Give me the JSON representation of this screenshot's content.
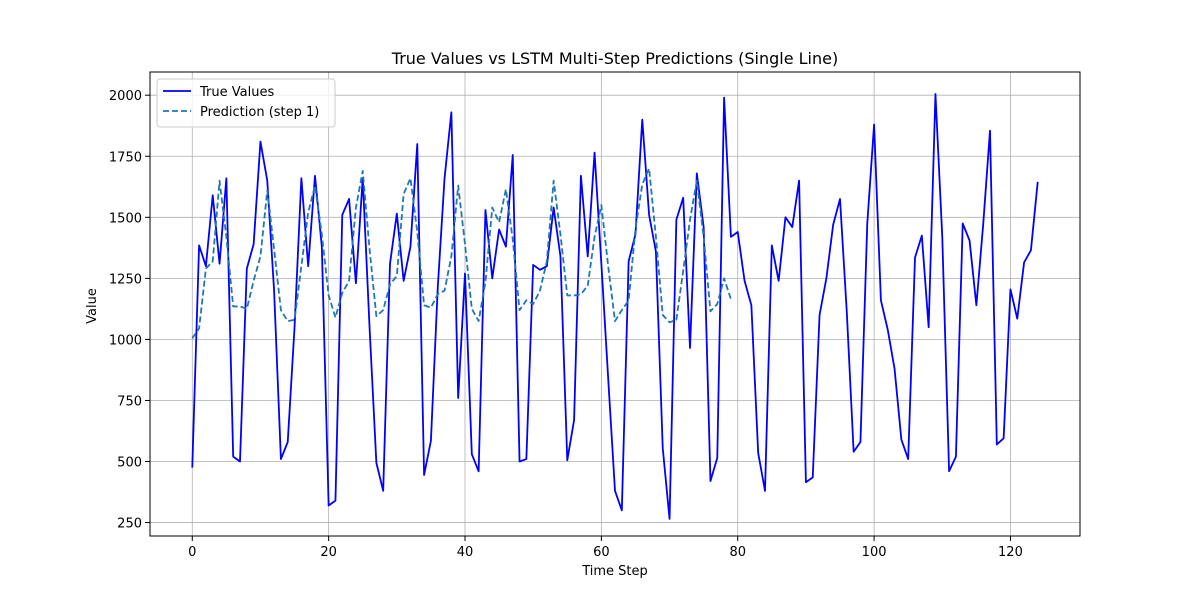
{
  "chart_data": {
    "type": "line",
    "title": "True Values vs LSTM Multi-Step Predictions (Single Line)",
    "xlabel": "Time Step",
    "ylabel": "Value",
    "xlim": [
      -6.2,
      130.2
    ],
    "ylim": [
      195,
      2095
    ],
    "xticks": [
      0,
      20,
      40,
      60,
      80,
      100,
      120
    ],
    "yticks": [
      250,
      500,
      750,
      1000,
      1250,
      1500,
      1750,
      2000
    ],
    "grid": true,
    "legend_position": "top-left",
    "series": [
      {
        "name": "True Values",
        "color": "#0000ff",
        "style": "solid",
        "values": [
          475,
          1385,
          1300,
          1590,
          1310,
          1660,
          520,
          500,
          1290,
          1390,
          1810,
          1650,
          1200,
          510,
          580,
          1050,
          1660,
          1300,
          1670,
          1380,
          320,
          340,
          1510,
          1575,
          1230,
          1660,
          1050,
          495,
          380,
          1310,
          1515,
          1240,
          1380,
          1800,
          445,
          585,
          1210,
          1660,
          1930,
          760,
          1270,
          530,
          460,
          1530,
          1250,
          1450,
          1380,
          1755,
          500,
          510,
          1305,
          1285,
          1300,
          1540,
          1340,
          505,
          670,
          1670,
          1340,
          1765,
          1310,
          840,
          380,
          300,
          1320,
          1430,
          1900,
          1510,
          1360,
          555,
          265,
          1490,
          1580,
          965,
          1680,
          1460,
          420,
          515,
          1990,
          1420,
          1440,
          1240,
          1140,
          535,
          380,
          1385,
          1240,
          1500,
          1460,
          1650,
          415,
          435,
          1100,
          1250,
          1470,
          1575,
          1110,
          540,
          580,
          1475,
          1880,
          1160,
          1040,
          880,
          590,
          510,
          1335,
          1425,
          1050,
          2005,
          1420,
          460,
          520,
          1475,
          1405,
          1140,
          1470,
          1855,
          570,
          595,
          1205,
          1085,
          1315,
          1365,
          1645
        ]
      },
      {
        "name": "Prediction (step 1)",
        "color": "#1f77b4",
        "style": "dashed",
        "values": [
          1005,
          1045,
          1290,
          1320,
          1650,
          1420,
          1135,
          1135,
          1125,
          1240,
          1340,
          1610,
          1370,
          1120,
          1075,
          1080,
          1300,
          1520,
          1630,
          1430,
          1180,
          1090,
          1190,
          1240,
          1540,
          1690,
          1370,
          1095,
          1120,
          1225,
          1260,
          1595,
          1660,
          1440,
          1140,
          1130,
          1185,
          1200,
          1340,
          1630,
          1390,
          1125,
          1075,
          1235,
          1540,
          1480,
          1615,
          1410,
          1120,
          1160,
          1145,
          1200,
          1320,
          1650,
          1430,
          1180,
          1180,
          1185,
          1220,
          1420,
          1550,
          1300,
          1075,
          1120,
          1160,
          1450,
          1635,
          1700,
          1420,
          1100,
          1070,
          1080,
          1280,
          1490,
          1650,
          1420,
          1115,
          1145,
          1250,
          1165
        ]
      }
    ]
  }
}
